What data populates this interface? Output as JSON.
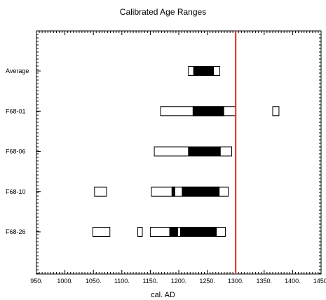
{
  "chart_data": {
    "type": "range",
    "title": "Calibrated Age Ranges",
    "xlabel": "cal. AD",
    "xlim": [
      950,
      1450
    ],
    "x_ticks": [
      950,
      1000,
      1050,
      1100,
      1150,
      1200,
      1250,
      1300,
      1350,
      1400,
      1450
    ],
    "x_tick_labels": [
      "950.",
      "1000.",
      "1050.",
      "1100.",
      "1150.",
      "1200.",
      "1250.",
      "1300.",
      "1350.",
      "1400.",
      "1450."
    ],
    "grid": false,
    "reference_line": {
      "x": 1300,
      "color": "#e0271f"
    },
    "samples": [
      {
        "label": "Average",
        "ranges_95": [
          [
            1217,
            1272
          ]
        ],
        "ranges_68": [
          [
            1226,
            1261
          ]
        ]
      },
      {
        "label": "F68-01",
        "ranges_95": [
          [
            1168,
            1300
          ],
          [
            1365,
            1376
          ]
        ],
        "ranges_68": [
          [
            1225,
            1279
          ]
        ]
      },
      {
        "label": "F68-06",
        "ranges_95": [
          [
            1157,
            1293
          ]
        ],
        "ranges_68": [
          [
            1217,
            1273
          ]
        ]
      },
      {
        "label": "F68-10",
        "ranges_95": [
          [
            1052,
            1073
          ],
          [
            1152,
            1287
          ]
        ],
        "ranges_68": [
          [
            1188,
            1193
          ],
          [
            1206,
            1271
          ]
        ]
      },
      {
        "label": "F68-26",
        "ranges_95": [
          [
            1049,
            1079
          ],
          [
            1128,
            1136
          ],
          [
            1150,
            1282
          ]
        ],
        "ranges_68": [
          [
            1184,
            1198
          ],
          [
            1203,
            1266
          ]
        ]
      }
    ]
  }
}
